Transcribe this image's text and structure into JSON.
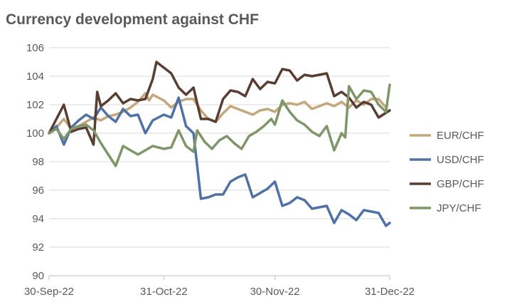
{
  "chart_data": {
    "type": "line",
    "title": "Currency development against CHF",
    "xlabel": "",
    "ylabel": "",
    "ylim": [
      90,
      106
    ],
    "yticks": [
      90,
      92,
      94,
      96,
      98,
      100,
      102,
      104,
      106
    ],
    "xlim": [
      "2022-09-30",
      "2022-12-31"
    ],
    "xticks": [
      "2022-09-30",
      "2022-10-31",
      "2022-11-30",
      "2022-12-31"
    ],
    "xtick_labels": [
      "30-Sep-22",
      "31-Oct-22",
      "30-Nov-22",
      "31-Dec-22"
    ],
    "grid": "horizontal",
    "legend_position": "right",
    "series": [
      {
        "name": "EUR/CHF",
        "color": "#c4a77a",
        "points": [
          [
            "2022-09-30",
            100.0
          ],
          [
            "2022-10-02",
            100.4
          ],
          [
            "2022-10-04",
            101.0
          ],
          [
            "2022-10-06",
            100.3
          ],
          [
            "2022-10-08",
            100.5
          ],
          [
            "2022-10-10",
            100.8
          ],
          [
            "2022-10-12",
            101.1
          ],
          [
            "2022-10-14",
            100.9
          ],
          [
            "2022-10-16",
            101.2
          ],
          [
            "2022-10-18",
            101.3
          ],
          [
            "2022-10-20",
            101.5
          ],
          [
            "2022-10-22",
            101.8
          ],
          [
            "2022-10-24",
            102.2
          ],
          [
            "2022-10-26",
            102.8
          ],
          [
            "2022-10-27",
            102.3
          ],
          [
            "2022-10-28",
            102.7
          ],
          [
            "2022-10-31",
            102.3
          ],
          [
            "2022-11-02",
            101.8
          ],
          [
            "2022-11-04",
            102.2
          ],
          [
            "2022-11-06",
            102.4
          ],
          [
            "2022-11-08",
            102.4
          ],
          [
            "2022-11-10",
            101.6
          ],
          [
            "2022-11-12",
            101.0
          ],
          [
            "2022-11-14",
            100.8
          ],
          [
            "2022-11-16",
            101.4
          ],
          [
            "2022-11-18",
            101.9
          ],
          [
            "2022-11-20",
            101.7
          ],
          [
            "2022-11-22",
            101.5
          ],
          [
            "2022-11-24",
            101.3
          ],
          [
            "2022-11-26",
            101.6
          ],
          [
            "2022-11-28",
            101.7
          ],
          [
            "2022-11-30",
            101.5
          ],
          [
            "2022-12-02",
            102.0
          ],
          [
            "2022-12-04",
            102.1
          ],
          [
            "2022-12-06",
            102.0
          ],
          [
            "2022-12-08",
            102.2
          ],
          [
            "2022-12-10",
            101.7
          ],
          [
            "2022-12-12",
            101.9
          ],
          [
            "2022-12-14",
            102.1
          ],
          [
            "2022-12-16",
            101.9
          ],
          [
            "2022-12-18",
            102.2
          ],
          [
            "2022-12-20",
            101.8
          ],
          [
            "2022-12-22",
            102.3
          ],
          [
            "2022-12-24",
            102.0
          ],
          [
            "2022-12-26",
            102.4
          ],
          [
            "2022-12-28",
            102.4
          ],
          [
            "2022-12-30",
            101.8
          ]
        ]
      },
      {
        "name": "USD/CHF",
        "color": "#4f71a6",
        "points": [
          [
            "2022-09-30",
            100.0
          ],
          [
            "2022-10-02",
            100.5
          ],
          [
            "2022-10-04",
            99.2
          ],
          [
            "2022-10-06",
            100.4
          ],
          [
            "2022-10-08",
            100.9
          ],
          [
            "2022-10-10",
            101.3
          ],
          [
            "2022-10-12",
            101.0
          ],
          [
            "2022-10-14",
            101.8
          ],
          [
            "2022-10-16",
            101.2
          ],
          [
            "2022-10-18",
            100.8
          ],
          [
            "2022-10-20",
            101.7
          ],
          [
            "2022-10-22",
            101.2
          ],
          [
            "2022-10-24",
            101.3
          ],
          [
            "2022-10-26",
            100.0
          ],
          [
            "2022-10-28",
            100.9
          ],
          [
            "2022-10-31",
            101.3
          ],
          [
            "2022-11-02",
            101.1
          ],
          [
            "2022-11-04",
            102.5
          ],
          [
            "2022-11-06",
            100.5
          ],
          [
            "2022-11-08",
            100.0
          ],
          [
            "2022-11-10",
            95.4
          ],
          [
            "2022-11-12",
            95.5
          ],
          [
            "2022-11-14",
            95.7
          ],
          [
            "2022-11-16",
            95.7
          ],
          [
            "2022-11-18",
            96.6
          ],
          [
            "2022-11-20",
            96.9
          ],
          [
            "2022-11-22",
            97.1
          ],
          [
            "2022-11-24",
            95.5
          ],
          [
            "2022-11-26",
            95.8
          ],
          [
            "2022-11-28",
            96.1
          ],
          [
            "2022-11-30",
            96.6
          ],
          [
            "2022-12-02",
            94.9
          ],
          [
            "2022-12-04",
            95.1
          ],
          [
            "2022-12-06",
            95.5
          ],
          [
            "2022-12-08",
            95.3
          ],
          [
            "2022-12-10",
            94.7
          ],
          [
            "2022-12-12",
            94.8
          ],
          [
            "2022-12-14",
            94.9
          ],
          [
            "2022-12-16",
            93.7
          ],
          [
            "2022-12-18",
            94.6
          ],
          [
            "2022-12-20",
            94.3
          ],
          [
            "2022-12-22",
            93.9
          ],
          [
            "2022-12-24",
            94.6
          ],
          [
            "2022-12-26",
            94.5
          ],
          [
            "2022-12-28",
            94.4
          ],
          [
            "2022-12-30",
            93.5
          ],
          [
            "2022-12-31",
            93.7
          ]
        ]
      },
      {
        "name": "GBP/CHF",
        "color": "#5a3d32",
        "points": [
          [
            "2022-09-30",
            100.0
          ],
          [
            "2022-10-02",
            101.0
          ],
          [
            "2022-10-04",
            102.0
          ],
          [
            "2022-10-06",
            100.1
          ],
          [
            "2022-10-08",
            100.3
          ],
          [
            "2022-10-10",
            100.4
          ],
          [
            "2022-10-12",
            99.2
          ],
          [
            "2022-10-13",
            102.9
          ],
          [
            "2022-10-14",
            101.9
          ],
          [
            "2022-10-16",
            102.3
          ],
          [
            "2022-10-18",
            102.8
          ],
          [
            "2022-10-20",
            102.1
          ],
          [
            "2022-10-22",
            102.4
          ],
          [
            "2022-10-24",
            102.3
          ],
          [
            "2022-10-26",
            102.4
          ],
          [
            "2022-10-28",
            103.8
          ],
          [
            "2022-10-29",
            105.0
          ],
          [
            "2022-10-31",
            104.6
          ],
          [
            "2022-11-02",
            104.2
          ],
          [
            "2022-11-04",
            103.2
          ],
          [
            "2022-11-06",
            102.7
          ],
          [
            "2022-11-08",
            103.2
          ],
          [
            "2022-11-10",
            101.0
          ],
          [
            "2022-11-12",
            101.0
          ],
          [
            "2022-11-14",
            100.8
          ],
          [
            "2022-11-16",
            102.4
          ],
          [
            "2022-11-18",
            103.0
          ],
          [
            "2022-11-20",
            102.9
          ],
          [
            "2022-11-22",
            102.6
          ],
          [
            "2022-11-24",
            103.8
          ],
          [
            "2022-11-26",
            103.1
          ],
          [
            "2022-11-28",
            103.6
          ],
          [
            "2022-11-30",
            103.5
          ],
          [
            "2022-12-02",
            104.5
          ],
          [
            "2022-12-04",
            104.4
          ],
          [
            "2022-12-06",
            103.7
          ],
          [
            "2022-12-08",
            104.1
          ],
          [
            "2022-12-10",
            104.0
          ],
          [
            "2022-12-12",
            104.1
          ],
          [
            "2022-12-14",
            104.2
          ],
          [
            "2022-12-16",
            102.6
          ],
          [
            "2022-12-18",
            102.9
          ],
          [
            "2022-12-20",
            102.5
          ],
          [
            "2022-12-22",
            101.8
          ],
          [
            "2022-12-24",
            102.2
          ],
          [
            "2022-12-26",
            102.0
          ],
          [
            "2022-12-28",
            101.1
          ],
          [
            "2022-12-31",
            101.6
          ]
        ]
      },
      {
        "name": "JPY/CHF",
        "color": "#7e9668",
        "points": [
          [
            "2022-09-30",
            100.0
          ],
          [
            "2022-10-02",
            100.3
          ],
          [
            "2022-10-04",
            99.6
          ],
          [
            "2022-10-06",
            100.3
          ],
          [
            "2022-10-08",
            100.5
          ],
          [
            "2022-10-10",
            100.6
          ],
          [
            "2022-10-12",
            100.2
          ],
          [
            "2022-10-14",
            99.3
          ],
          [
            "2022-10-16",
            98.5
          ],
          [
            "2022-10-18",
            97.7
          ],
          [
            "2022-10-20",
            99.1
          ],
          [
            "2022-10-22",
            98.8
          ],
          [
            "2022-10-24",
            98.5
          ],
          [
            "2022-10-26",
            98.8
          ],
          [
            "2022-10-28",
            99.1
          ],
          [
            "2022-10-31",
            98.9
          ],
          [
            "2022-11-02",
            99.0
          ],
          [
            "2022-11-04",
            100.2
          ],
          [
            "2022-11-06",
            99.1
          ],
          [
            "2022-11-08",
            98.7
          ],
          [
            "2022-11-09",
            100.2
          ],
          [
            "2022-11-11",
            99.4
          ],
          [
            "2022-11-13",
            98.9
          ],
          [
            "2022-11-15",
            99.5
          ],
          [
            "2022-11-17",
            99.8
          ],
          [
            "2022-11-19",
            99.3
          ],
          [
            "2022-11-21",
            98.9
          ],
          [
            "2022-11-23",
            99.8
          ],
          [
            "2022-11-25",
            100.1
          ],
          [
            "2022-11-27",
            100.5
          ],
          [
            "2022-11-29",
            101.0
          ],
          [
            "2022-11-30",
            100.6
          ],
          [
            "2022-12-02",
            102.3
          ],
          [
            "2022-12-04",
            101.5
          ],
          [
            "2022-12-06",
            100.9
          ],
          [
            "2022-12-08",
            100.6
          ],
          [
            "2022-12-10",
            100.1
          ],
          [
            "2022-12-12",
            99.8
          ],
          [
            "2022-12-14",
            100.5
          ],
          [
            "2022-12-16",
            98.8
          ],
          [
            "2022-12-18",
            100.0
          ],
          [
            "2022-12-19",
            99.7
          ],
          [
            "2022-12-20",
            103.3
          ],
          [
            "2022-12-22",
            102.4
          ],
          [
            "2022-12-24",
            103.0
          ],
          [
            "2022-12-26",
            102.9
          ],
          [
            "2022-12-28",
            102.0
          ],
          [
            "2022-12-30",
            101.5
          ],
          [
            "2022-12-31",
            103.4
          ]
        ]
      }
    ]
  }
}
